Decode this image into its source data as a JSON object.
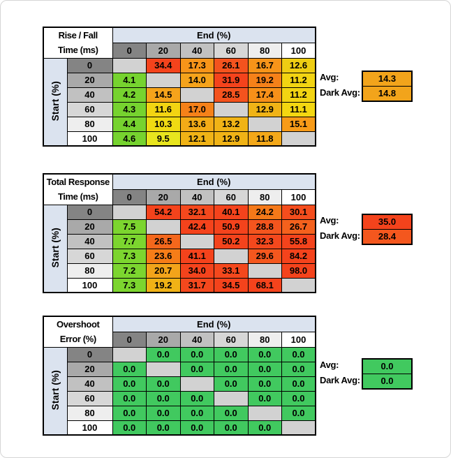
{
  "frame": {
    "border_color": "#d5d5d5"
  },
  "shared": {
    "end_axis_label": "End (%)",
    "start_axis_label": "Start (%)",
    "col_ticks": [
      "0",
      "20",
      "40",
      "60",
      "80",
      "100"
    ],
    "row_ticks": [
      "0",
      "20",
      "40",
      "60",
      "80",
      "100"
    ],
    "header_gradient": [
      "#848484",
      "#a9a9a9",
      "#c1c1c1",
      "#d7d7d7",
      "#eeeeee",
      "#ffffff"
    ],
    "axis_band_bg": "#dbe3ef",
    "blank_cell_bg": "#d2d2d2",
    "avg_label": "Avg:",
    "dark_avg_label": "Dark Avg:"
  },
  "chart_data": [
    {
      "type": "heatmap",
      "title_lines": [
        "Rise / Fall",
        "Time (ms)"
      ],
      "x_axis": "End (%)",
      "y_axis": "Start (%)",
      "x_ticks": [
        "0",
        "20",
        "40",
        "60",
        "80",
        "100"
      ],
      "y_ticks": [
        "0",
        "20",
        "40",
        "60",
        "80",
        "100"
      ],
      "values": [
        [
          null,
          34.4,
          17.3,
          26.1,
          16.7,
          12.6
        ],
        [
          4.1,
          null,
          14.0,
          31.9,
          19.2,
          11.2
        ],
        [
          4.2,
          14.5,
          null,
          28.5,
          17.4,
          11.2
        ],
        [
          4.3,
          11.6,
          17.0,
          null,
          12.9,
          11.1
        ],
        [
          4.4,
          10.3,
          13.6,
          13.2,
          null,
          15.1
        ],
        [
          4.6,
          9.5,
          12.1,
          12.9,
          11.8,
          null
        ]
      ],
      "cell_colors": [
        [
          null,
          "#f4431c",
          "#f79419",
          "#f4531e",
          "#f79419",
          "#eecd13"
        ],
        [
          "#76d32f",
          null,
          "#f5a31b",
          "#f4431c",
          "#f58119",
          "#f2d412"
        ],
        [
          "#76d32f",
          "#f5a31b",
          null,
          "#f4531e",
          "#f79019",
          "#f2d412"
        ],
        [
          "#76d32f",
          "#f2d412",
          "#f58119",
          null,
          "#f0b316",
          "#f3d711"
        ],
        [
          "#76d32f",
          "#f0da12",
          "#f3ab17",
          "#f0b316",
          null,
          "#f79b18"
        ],
        [
          "#76d32f",
          "#e8e51e",
          "#f0b316",
          "#f0b316",
          "#f3a81a",
          null
        ]
      ],
      "avg": 14.3,
      "avg_color": "#f2a41b",
      "dark_avg": 14.8,
      "dark_avg_color": "#f2a41b"
    },
    {
      "type": "heatmap",
      "title_lines": [
        "Total Response",
        "Time (ms)"
      ],
      "x_axis": "End (%)",
      "y_axis": "Start (%)",
      "x_ticks": [
        "0",
        "20",
        "40",
        "60",
        "80",
        "100"
      ],
      "y_ticks": [
        "0",
        "20",
        "40",
        "60",
        "80",
        "100"
      ],
      "values": [
        [
          null,
          54.2,
          32.1,
          40.1,
          24.2,
          30.1
        ],
        [
          7.5,
          null,
          42.4,
          50.9,
          28.8,
          26.7
        ],
        [
          7.7,
          26.5,
          null,
          50.2,
          32.3,
          55.8
        ],
        [
          7.3,
          23.6,
          41.1,
          null,
          29.6,
          84.2
        ],
        [
          7.2,
          20.7,
          34.0,
          33.1,
          null,
          98.0
        ],
        [
          7.3,
          19.2,
          31.7,
          34.5,
          68.1,
          null
        ]
      ],
      "cell_colors": [
        [
          null,
          "#f4431c",
          "#f4481d",
          "#f4431c",
          "#f57919",
          "#f44d1d"
        ],
        [
          "#7cd52f",
          null,
          "#f4431c",
          "#f4431c",
          "#f4551e",
          "#f4611d"
        ],
        [
          "#7cd52f",
          "#f4671c",
          null,
          "#f4431c",
          "#f4481d",
          "#f4431c"
        ],
        [
          "#7cd52f",
          "#f57d18",
          "#f4431c",
          null,
          "#f4571e",
          "#f4431c"
        ],
        [
          "#7cd52f",
          "#f2a41a",
          "#f4431c",
          "#f4481d",
          null,
          "#f4431c"
        ],
        [
          "#7cd52f",
          "#f0b216",
          "#f4481d",
          "#f4431c",
          "#f4431c",
          null
        ]
      ],
      "avg": 35.0,
      "avg_color": "#f4431c",
      "dark_avg": 28.4,
      "dark_avg_color": "#f4571e"
    },
    {
      "type": "heatmap",
      "title_lines": [
        "Overshoot",
        "Error (%)"
      ],
      "x_axis": "End (%)",
      "y_axis": "Start (%)",
      "x_ticks": [
        "0",
        "20",
        "40",
        "60",
        "80",
        "100"
      ],
      "y_ticks": [
        "0",
        "20",
        "40",
        "60",
        "80",
        "100"
      ],
      "values": [
        [
          null,
          0.0,
          0.0,
          0.0,
          0.0,
          0.0
        ],
        [
          0.0,
          null,
          0.0,
          0.0,
          0.0,
          0.0
        ],
        [
          0.0,
          0.0,
          null,
          0.0,
          0.0,
          0.0
        ],
        [
          0.0,
          0.0,
          0.0,
          null,
          0.0,
          0.0
        ],
        [
          0.0,
          0.0,
          0.0,
          0.0,
          null,
          0.0
        ],
        [
          0.0,
          0.0,
          0.0,
          0.0,
          0.0,
          null
        ]
      ],
      "cell_colors": [
        [
          null,
          "#41c95f",
          "#41c95f",
          "#41c95f",
          "#41c95f",
          "#41c95f"
        ],
        [
          "#41c95f",
          null,
          "#41c95f",
          "#41c95f",
          "#41c95f",
          "#41c95f"
        ],
        [
          "#41c95f",
          "#41c95f",
          null,
          "#41c95f",
          "#41c95f",
          "#41c95f"
        ],
        [
          "#41c95f",
          "#41c95f",
          "#41c95f",
          null,
          "#41c95f",
          "#41c95f"
        ],
        [
          "#41c95f",
          "#41c95f",
          "#41c95f",
          "#41c95f",
          null,
          "#41c95f"
        ],
        [
          "#41c95f",
          "#41c95f",
          "#41c95f",
          "#41c95f",
          "#41c95f",
          null
        ]
      ],
      "avg": 0.0,
      "avg_color": "#41c95f",
      "dark_avg": 0.0,
      "dark_avg_color": "#41c95f"
    }
  ]
}
